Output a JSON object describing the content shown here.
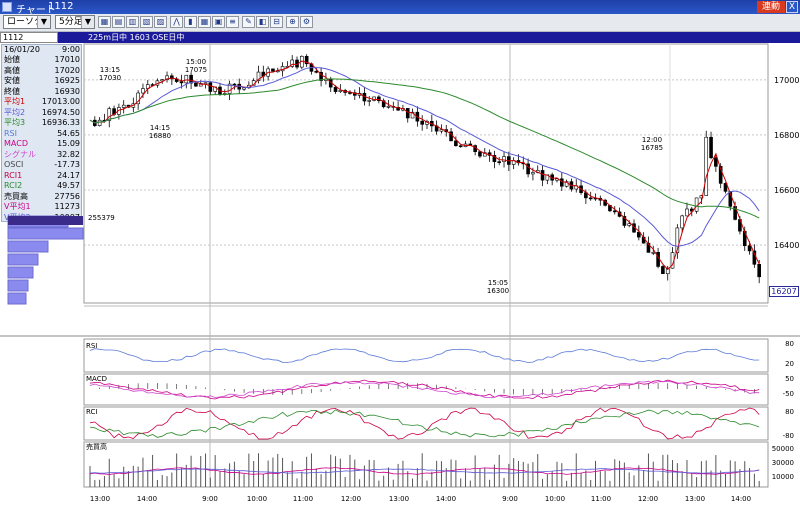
{
  "window": {
    "title": "チャート",
    "code_title": "1112",
    "link_label": "連動",
    "close_label": "X"
  },
  "toolbar": {
    "chart_type": "ローソク",
    "interval": "5分足"
  },
  "codebar": {
    "code": "1112",
    "name": "225m日中 1603",
    "market": "OSE日中"
  },
  "info_panel": {
    "date": "16/01/20",
    "time": "9:00",
    "rows": [
      {
        "label": "始値",
        "value": "17010",
        "color": "#000000"
      },
      {
        "label": "高値",
        "value": "17020",
        "color": "#000000"
      },
      {
        "label": "安値",
        "value": "16925",
        "color": "#000000"
      },
      {
        "label": "終値",
        "value": "16930",
        "color": "#000000"
      },
      {
        "label": "平均1",
        "value": "17013.00",
        "color": "#cc0000"
      },
      {
        "label": "平均2",
        "value": "16974.50",
        "color": "#5a5ad8"
      },
      {
        "label": "平均3",
        "value": "16936.33",
        "color": "#2c8a2c"
      },
      {
        "label": "RSI",
        "value": "54.65",
        "color": "#5a7ad8"
      },
      {
        "label": "MACD",
        "value": "15.09",
        "color": "#cc0088"
      },
      {
        "label": "シグナル",
        "value": "32.82",
        "color": "#cc44cc"
      },
      {
        "label": "OSCI",
        "value": "-17.73",
        "color": "#444444"
      },
      {
        "label": "RCI1",
        "value": "24.17",
        "color": "#cc0044"
      },
      {
        "label": "RCI2",
        "value": "49.57",
        "color": "#2c8a2c"
      },
      {
        "label": "売買高",
        "value": "27756",
        "color": "#000000"
      },
      {
        "label": "V平均1",
        "value": "11273",
        "color": "#cc0088"
      },
      {
        "label": "V平均2",
        "value": "10997",
        "color": "#5a5ad8"
      }
    ]
  },
  "volume_profile_label": "255379",
  "last_price": "16207",
  "price_axis": {
    "ticks": [
      "17000",
      "16800",
      "16600",
      "16400"
    ]
  },
  "annotations": [
    {
      "time": "13:15",
      "price": "17030"
    },
    {
      "time": "15:00",
      "price": "17075"
    },
    {
      "time": "14:15",
      "price": "16880"
    },
    {
      "time": "12:00",
      "price": "16785"
    },
    {
      "time": "15:05",
      "price": "16300"
    }
  ],
  "panels": {
    "rsi": {
      "label": "RSI",
      "ticks": [
        "80",
        "20"
      ]
    },
    "macd": {
      "label": "MACD",
      "ticks": [
        "50",
        "-50"
      ]
    },
    "rci": {
      "label": "RCI",
      "ticks": [
        "80",
        "-80"
      ]
    },
    "volume": {
      "label": "売買高",
      "ticks": [
        "50000",
        "30000",
        "10000"
      ]
    }
  },
  "time_axis": [
    "13:00",
    "14:00",
    "9:00",
    "10:00",
    "11:00",
    "12:00",
    "13:00",
    "14:00",
    "9:00",
    "10:00",
    "11:00",
    "12:00",
    "13:00",
    "14:00"
  ],
  "colors": {
    "up": "#ffffff",
    "down": "#000000",
    "ma1": "#cc0000",
    "ma2": "#5a5ad8",
    "ma3": "#2c8a2c",
    "bg": "#ffffff",
    "accent": "#1a1a9a"
  }
}
